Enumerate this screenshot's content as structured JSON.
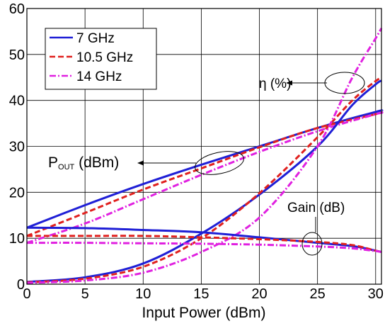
{
  "chart_data": {
    "type": "line",
    "xlabel": "Input Power (dBm)",
    "ylabel": "",
    "xlim": [
      0,
      30.5
    ],
    "ylim": [
      0,
      60
    ],
    "xticks": [
      0,
      5,
      10,
      15,
      20,
      25,
      30
    ],
    "yticks": [
      0,
      10,
      20,
      30,
      40,
      50,
      60
    ],
    "grid": true,
    "legend_position": "top-left",
    "legend": [
      {
        "name": "7 GHz",
        "color": "#1f1fd6",
        "style": "solid"
      },
      {
        "name": "10.5 GHz",
        "color": "#e0201e",
        "style": "dashed"
      },
      {
        "name": "14 GHz",
        "color": "#e020e0",
        "style": "dashdot"
      }
    ],
    "annotations": {
      "eta": "η (%)",
      "pout_main": "P",
      "pout_sub": "OUT",
      "pout_unit": " (dBm)",
      "gain": "Gain (dB)"
    },
    "series": [
      {
        "legend": 0,
        "group": "pout",
        "points": [
          [
            0,
            12.3
          ],
          [
            5,
            17.2
          ],
          [
            10,
            21.8
          ],
          [
            15,
            26.0
          ],
          [
            20,
            30.0
          ],
          [
            25,
            34.0
          ],
          [
            30,
            37.5
          ],
          [
            30.5,
            37.7
          ]
        ]
      },
      {
        "legend": 1,
        "group": "pout",
        "points": [
          [
            0,
            10.5
          ],
          [
            5,
            15.5
          ],
          [
            10,
            20.6
          ],
          [
            15,
            25.2
          ],
          [
            20,
            29.8
          ],
          [
            25,
            34.0
          ],
          [
            30,
            37.0
          ],
          [
            30.5,
            37.4
          ]
        ]
      },
      {
        "legend": 2,
        "group": "pout",
        "points": [
          [
            0,
            9.0
          ],
          [
            5,
            13.2
          ],
          [
            10,
            18.5
          ],
          [
            15,
            23.8
          ],
          [
            20,
            28.8
          ],
          [
            25,
            33.3
          ],
          [
            30,
            37.0
          ],
          [
            30.5,
            37.2
          ]
        ]
      },
      {
        "legend": 0,
        "group": "eta",
        "points": [
          [
            0,
            0.5
          ],
          [
            5,
            1.5
          ],
          [
            10,
            4.5
          ],
          [
            15,
            11.0
          ],
          [
            20,
            19.5
          ],
          [
            25,
            30.0
          ],
          [
            28,
            39.0
          ],
          [
            30,
            43.5
          ],
          [
            30.5,
            44.3
          ]
        ]
      },
      {
        "legend": 1,
        "group": "eta",
        "points": [
          [
            0,
            0.4
          ],
          [
            5,
            1.2
          ],
          [
            10,
            3.8
          ],
          [
            15,
            10.0
          ],
          [
            20,
            19.8
          ],
          [
            25,
            32.0
          ],
          [
            28,
            40.0
          ],
          [
            30,
            44.2
          ],
          [
            30.5,
            44.8
          ]
        ]
      },
      {
        "legend": 2,
        "group": "eta",
        "points": [
          [
            0,
            0.3
          ],
          [
            5,
            0.8
          ],
          [
            10,
            2.5
          ],
          [
            15,
            7.0
          ],
          [
            20,
            14.5
          ],
          [
            25,
            30.0
          ],
          [
            28,
            45.0
          ],
          [
            30,
            53.5
          ],
          [
            30.5,
            55.7
          ]
        ]
      },
      {
        "legend": 0,
        "group": "gain",
        "points": [
          [
            0,
            12.3
          ],
          [
            5,
            12.2
          ],
          [
            10,
            11.8
          ],
          [
            15,
            11.3
          ],
          [
            20,
            10.2
          ],
          [
            25,
            9.0
          ],
          [
            28,
            8.3
          ],
          [
            30,
            7.3
          ],
          [
            30.5,
            7.0
          ]
        ]
      },
      {
        "legend": 1,
        "group": "gain",
        "points": [
          [
            0,
            10.5
          ],
          [
            5,
            10.5
          ],
          [
            10,
            10.5
          ],
          [
            15,
            10.2
          ],
          [
            20,
            9.8
          ],
          [
            25,
            9.2
          ],
          [
            28,
            8.5
          ],
          [
            30,
            7.3
          ],
          [
            30.5,
            7.0
          ]
        ]
      },
      {
        "legend": 2,
        "group": "gain",
        "points": [
          [
            0,
            9.0
          ],
          [
            5,
            9.0
          ],
          [
            10,
            8.9
          ],
          [
            15,
            8.8
          ],
          [
            20,
            8.6
          ],
          [
            25,
            8.2
          ],
          [
            28,
            7.8
          ],
          [
            30,
            7.2
          ],
          [
            30.5,
            7.0
          ]
        ]
      }
    ]
  }
}
